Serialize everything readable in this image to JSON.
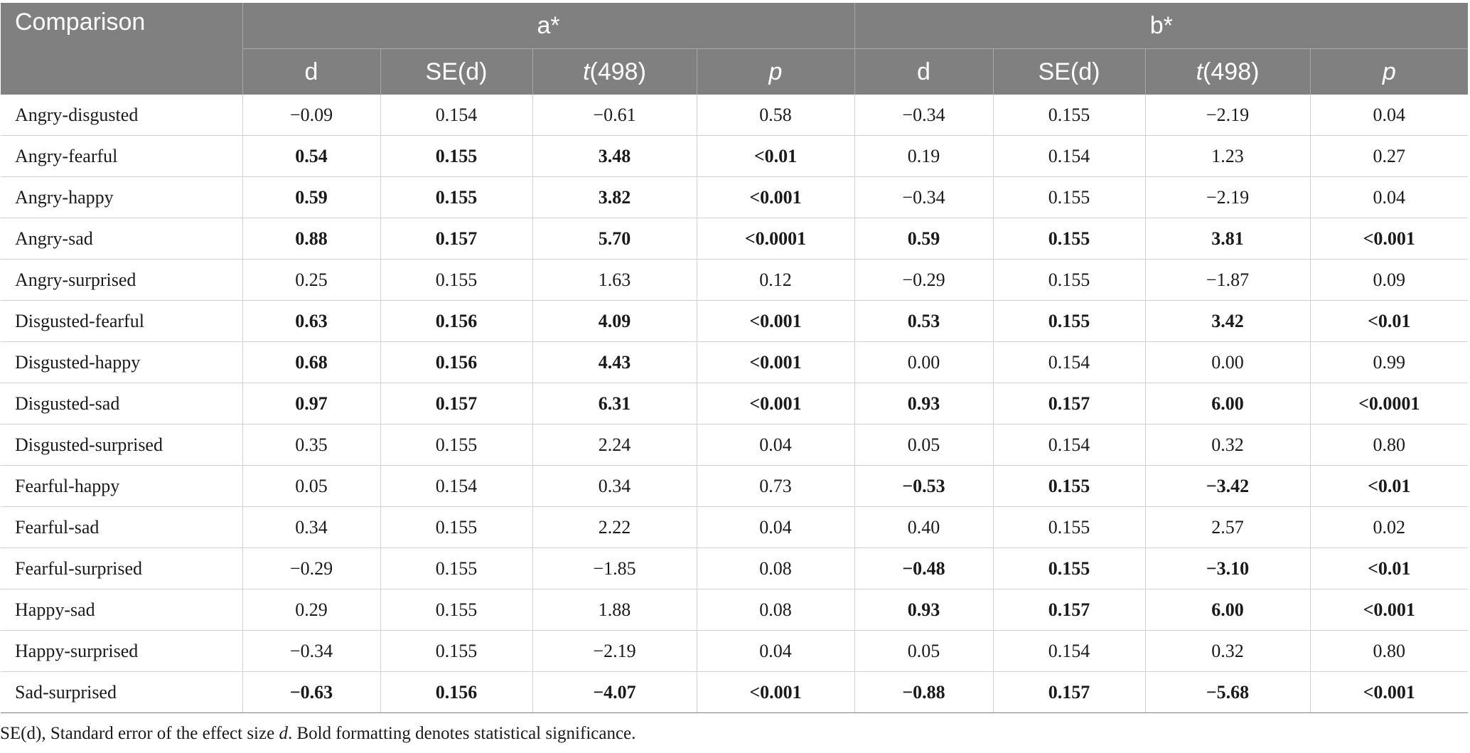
{
  "table": {
    "header": {
      "comparison": "Comparison",
      "group_a": "a*",
      "group_b": "b*",
      "d": "d",
      "se": "SE(d)",
      "t_italic": "t",
      "t_rest": "(498)",
      "p": "p"
    },
    "rows": [
      {
        "label": "Angry-disgusted",
        "cells": [
          "−0.09",
          "0.154",
          "−0.61",
          "0.58",
          "−0.34",
          "0.155",
          "−2.19",
          "0.04"
        ],
        "bold_a": false,
        "bold_b": false
      },
      {
        "label": "Angry-fearful",
        "cells": [
          "0.54",
          "0.155",
          "3.48",
          "<0.01",
          "0.19",
          "0.154",
          "1.23",
          "0.27"
        ],
        "bold_a": true,
        "bold_b": false
      },
      {
        "label": "Angry-happy",
        "cells": [
          "0.59",
          "0.155",
          "3.82",
          "<0.001",
          "−0.34",
          "0.155",
          "−2.19",
          "0.04"
        ],
        "bold_a": true,
        "bold_b": false
      },
      {
        "label": "Angry-sad",
        "cells": [
          "0.88",
          "0.157",
          "5.70",
          "<0.0001",
          "0.59",
          "0.155",
          "3.81",
          "<0.001"
        ],
        "bold_a": true,
        "bold_b": true
      },
      {
        "label": "Angry-surprised",
        "cells": [
          "0.25",
          "0.155",
          "1.63",
          "0.12",
          "−0.29",
          "0.155",
          "−1.87",
          "0.09"
        ],
        "bold_a": false,
        "bold_b": false
      },
      {
        "label": "Disgusted-fearful",
        "cells": [
          "0.63",
          "0.156",
          "4.09",
          "<0.001",
          "0.53",
          "0.155",
          "3.42",
          "<0.01"
        ],
        "bold_a": true,
        "bold_b": true
      },
      {
        "label": "Disgusted-happy",
        "cells": [
          "0.68",
          "0.156",
          "4.43",
          "<0.001",
          "0.00",
          "0.154",
          "0.00",
          "0.99"
        ],
        "bold_a": true,
        "bold_b": false
      },
      {
        "label": "Disgusted-sad",
        "cells": [
          "0.97",
          "0.157",
          "6.31",
          "<0.001",
          "0.93",
          "0.157",
          "6.00",
          "<0.0001"
        ],
        "bold_a": true,
        "bold_b": true
      },
      {
        "label": "Disgusted-surprised",
        "cells": [
          "0.35",
          "0.155",
          "2.24",
          "0.04",
          "0.05",
          "0.154",
          "0.32",
          "0.80"
        ],
        "bold_a": false,
        "bold_b": false
      },
      {
        "label": "Fearful-happy",
        "cells": [
          "0.05",
          "0.154",
          "0.34",
          "0.73",
          "−0.53",
          "0.155",
          "−3.42",
          "<0.01"
        ],
        "bold_a": false,
        "bold_b": true
      },
      {
        "label": "Fearful-sad",
        "cells": [
          "0.34",
          "0.155",
          "2.22",
          "0.04",
          "0.40",
          "0.155",
          "2.57",
          "0.02"
        ],
        "bold_a": false,
        "bold_b": false
      },
      {
        "label": "Fearful-surprised",
        "cells": [
          "−0.29",
          "0.155",
          "−1.85",
          "0.08",
          "−0.48",
          "0.155",
          "−3.10",
          "<0.01"
        ],
        "bold_a": false,
        "bold_b": true
      },
      {
        "label": "Happy-sad",
        "cells": [
          "0.29",
          "0.155",
          "1.88",
          "0.08",
          "0.93",
          "0.157",
          "6.00",
          "<0.001"
        ],
        "bold_a": false,
        "bold_b": true
      },
      {
        "label": "Happy-surprised",
        "cells": [
          "−0.34",
          "0.155",
          "−2.19",
          "0.04",
          "0.05",
          "0.154",
          "0.32",
          "0.80"
        ],
        "bold_a": false,
        "bold_b": false
      },
      {
        "label": "Sad-surprised",
        "cells": [
          "−0.63",
          "0.156",
          "−4.07",
          "<0.001",
          "−0.88",
          "0.157",
          "−5.68",
          "<0.001"
        ],
        "bold_a": true,
        "bold_b": true
      }
    ]
  },
  "footnote": {
    "part1": "SE(d), Standard error of the effect size ",
    "italic": "d",
    "part2": ". Bold formatting denotes statistical significance."
  },
  "colors": {
    "header_bg": "#808080",
    "header_text": "#ffffff",
    "grid": "#d0d0d0"
  }
}
